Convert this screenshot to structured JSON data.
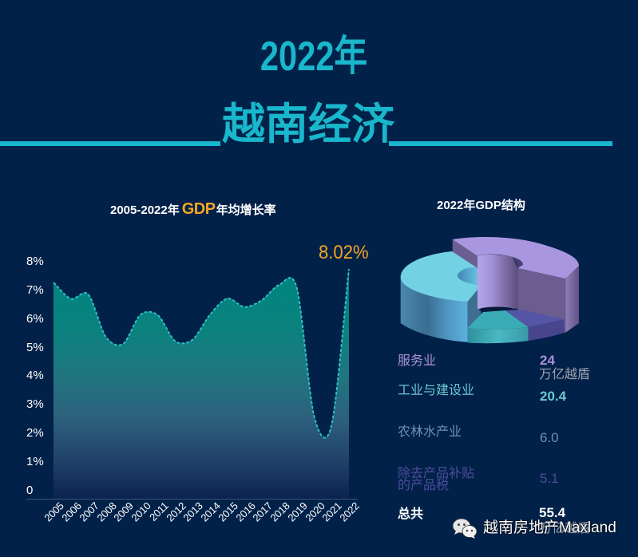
{
  "header": {
    "year_title": "2022年",
    "main_title": "越南经济",
    "accent_color": "#19b7cb"
  },
  "growth_chart": {
    "title_prefix": "2005-2022年",
    "title_highlight": "GDP",
    "title_suffix": "年均增长率",
    "last_value_label": "8.02%",
    "highlight_color": "#f5a623",
    "line_color": "#2bc0c2"
  },
  "structure_chart": {
    "title": "2022年GDP结构"
  },
  "legend": {
    "rows": [
      {
        "label": "服务业",
        "value": "24",
        "unit": "万亿越盾",
        "color": "#a893d8",
        "unit_color": "#9ea3ae"
      },
      {
        "label": "工业与建设业",
        "value": "20.4",
        "color": "#6cc8d0"
      },
      {
        "label": "农林水产业",
        "value": "6.0",
        "color": "#6f8fae"
      },
      {
        "label": "除去产品补贴\n的产品税",
        "value": "5.1",
        "color": "#4b4c9c"
      }
    ],
    "total": {
      "label": "总共",
      "value": "55.4",
      "unit": "万亿越盾",
      "color": "#ffffff"
    }
  },
  "watermark": {
    "icon": "wechat-icon",
    "text": "越南房地产Maxland"
  },
  "chart_data": [
    {
      "type": "area",
      "title": "2005-2022年 GDP年均增长率",
      "xlabel": "",
      "ylabel": "",
      "categories": [
        "2005",
        "2006",
        "2007",
        "2008",
        "2009",
        "2010",
        "2011",
        "2012",
        "2013",
        "2014",
        "2015",
        "2016",
        "2017",
        "2018",
        "2019",
        "2020",
        "2021",
        "2022"
      ],
      "values": [
        7.55,
        6.98,
        7.13,
        5.66,
        5.4,
        6.42,
        6.41,
        5.5,
        5.55,
        6.42,
        6.99,
        6.69,
        6.94,
        7.47,
        7.36,
        2.87,
        2.56,
        8.02
      ],
      "ylim": [
        0,
        8
      ],
      "yticks": [
        "0",
        "1%",
        "2%",
        "3%",
        "4%",
        "5%",
        "6%",
        "7%",
        "8%"
      ],
      "annotations": [
        {
          "x": "2022",
          "text": "8.02%"
        }
      ],
      "grid": false,
      "legend": null
    },
    {
      "type": "pie",
      "style": "3d-donut",
      "title": "2022年GDP结构",
      "categories": [
        "服务业",
        "工业与建设业",
        "农林水产业",
        "除去产品补贴的产品税"
      ],
      "values": [
        24,
        20.4,
        6.0,
        5.1
      ],
      "total": 55.4,
      "unit": "万亿越盾",
      "slice_colors": [
        "#a996e0",
        "#72d2e4",
        "#3aacb6",
        "#5555a5"
      ]
    }
  ]
}
